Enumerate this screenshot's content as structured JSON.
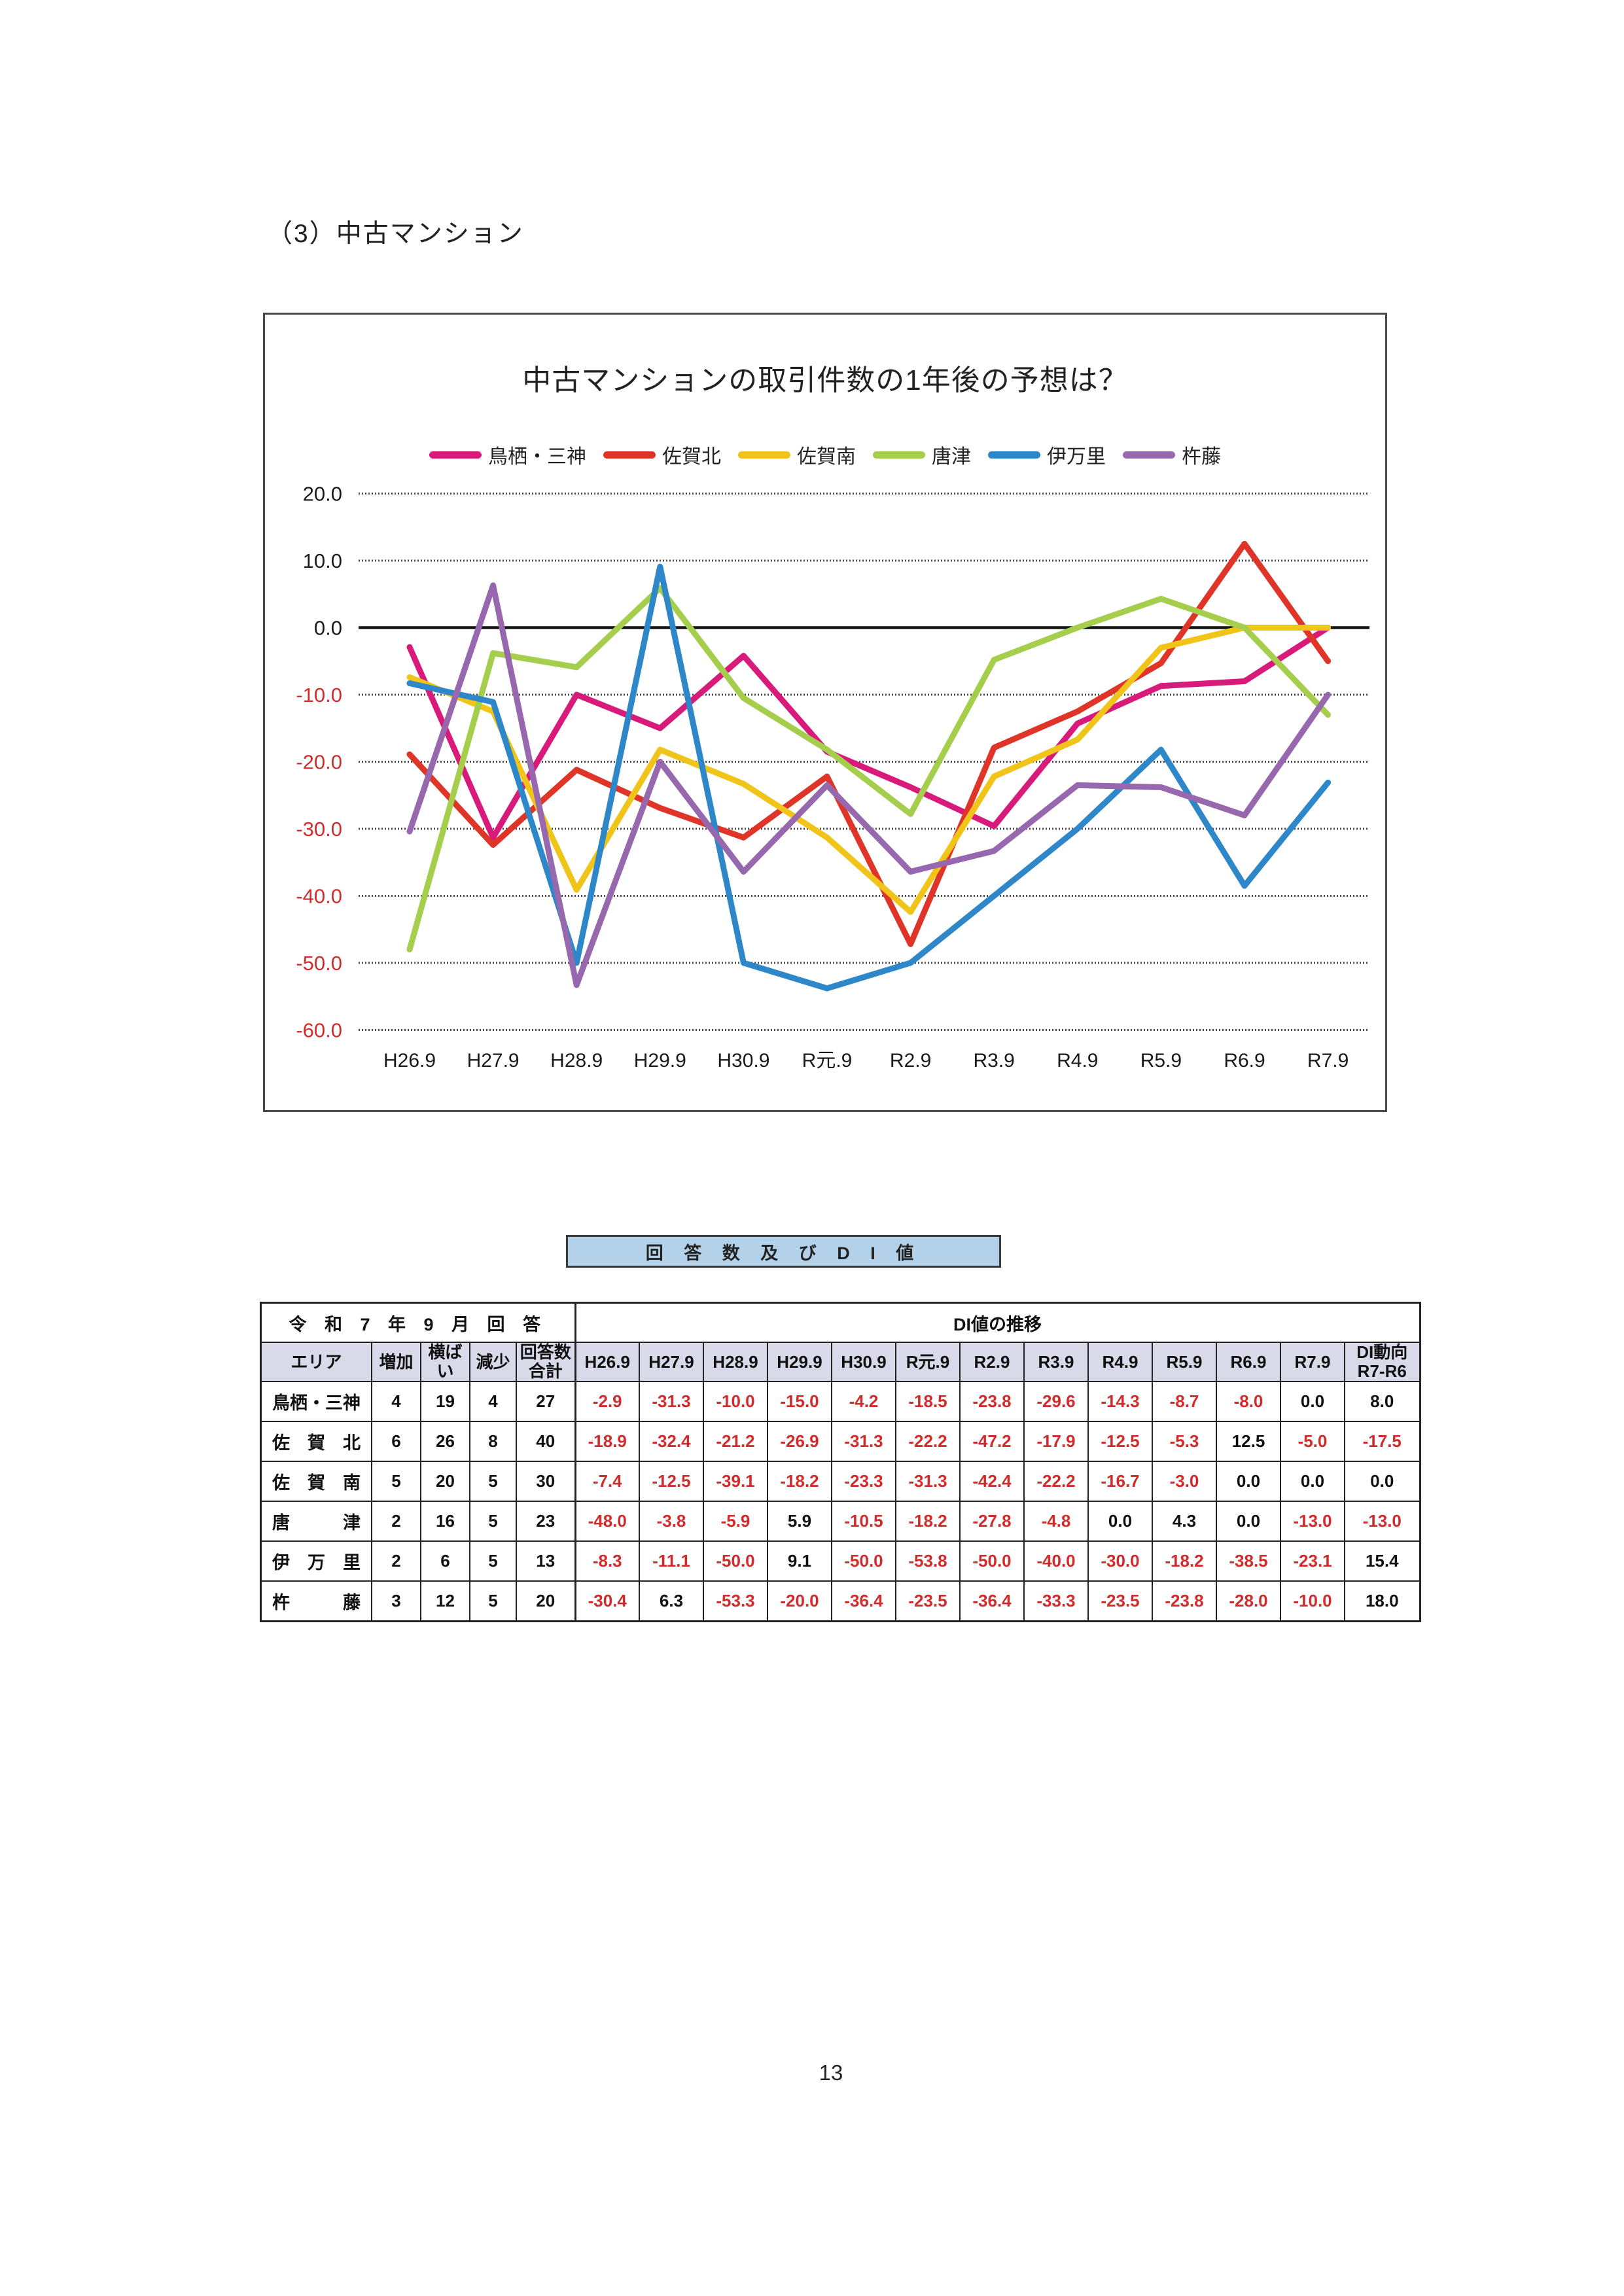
{
  "page": {
    "heading": "（3）中古マンション",
    "page_number": "13"
  },
  "chart_data": {
    "type": "line",
    "title": "中古マンションの取引件数の1年後の予想は？",
    "categories": [
      "H26.9",
      "H27.9",
      "H28.9",
      "H29.9",
      "H30.9",
      "R元.9",
      "R2.9",
      "R3.9",
      "R4.9",
      "R5.9",
      "R6.9",
      "R7.9"
    ],
    "series": [
      {
        "name": "鳥栖・三神",
        "color": "#d81b7b",
        "values": [
          -2.9,
          -31.3,
          -10.0,
          -15.0,
          -4.2,
          -18.5,
          -23.8,
          -29.6,
          -14.3,
          -8.7,
          -8.0,
          0.0
        ]
      },
      {
        "name": "佐賀北",
        "color": "#df3428",
        "values": [
          -18.9,
          -32.4,
          -21.2,
          -26.9,
          -31.3,
          -22.2,
          -47.2,
          -17.9,
          -12.5,
          -5.3,
          12.5,
          -5.0
        ]
      },
      {
        "name": "佐賀南",
        "color": "#f0c419",
        "values": [
          -7.4,
          -12.5,
          -39.1,
          -18.2,
          -23.3,
          -31.3,
          -42.4,
          -22.2,
          -16.7,
          -3.0,
          0.0,
          0.0
        ]
      },
      {
        "name": "唐津",
        "color": "#a5ce4d",
        "values": [
          -48.0,
          -3.8,
          -5.9,
          5.9,
          -10.5,
          -18.2,
          -27.8,
          -4.8,
          0.0,
          4.3,
          0.0,
          -13.0
        ]
      },
      {
        "name": "伊万里",
        "color": "#2e87c8",
        "values": [
          -8.3,
          -11.1,
          -50.0,
          9.1,
          -50.0,
          -53.8,
          -50.0,
          -40.0,
          -30.0,
          -18.2,
          -38.5,
          -23.1
        ]
      },
      {
        "name": "杵藤",
        "color": "#9768ae",
        "values": [
          -30.4,
          6.3,
          -53.3,
          -20.0,
          -36.4,
          -23.5,
          -36.4,
          -33.3,
          -23.5,
          -23.8,
          -28.0,
          -10.0
        ]
      }
    ],
    "y_ticks": [
      20,
      10,
      0,
      -10,
      -20,
      -30,
      -40,
      -50,
      -60
    ],
    "ylim": [
      -60,
      20
    ],
    "xlabel": "",
    "ylabel": "",
    "grid": "horizontal",
    "legend_position": "top",
    "negative_tick_color": "#d22b2b"
  },
  "banner": {
    "label": "回 答 数 及 び D I 値"
  },
  "table": {
    "group_left": "令 和 7 年 9 月 回 答",
    "group_right": "DI値の推移",
    "columns": [
      "エリア",
      "増加",
      "横ばい",
      "減少"
    ],
    "total_header": {
      "line1": "回答数",
      "line2": "合計"
    },
    "di_columns": [
      "H26.9",
      "H27.9",
      "H28.9",
      "H29.9",
      "H30.9",
      "R元.9",
      "R2.9",
      "R3.9",
      "R4.9",
      "R5.9",
      "R6.9",
      "R7.9"
    ],
    "trend_header": {
      "line1": "DI動向",
      "line2": "R7-R6"
    },
    "rows": [
      {
        "area": "鳥栖・三神",
        "increase": 4,
        "flat": 19,
        "decrease": 4,
        "total": 27,
        "di": [
          -2.9,
          -31.3,
          -10.0,
          -15.0,
          -4.2,
          -18.5,
          -23.8,
          -29.6,
          -14.3,
          -8.7,
          -8.0,
          0.0
        ],
        "trend": 8.0
      },
      {
        "area": "佐賀北",
        "increase": 6,
        "flat": 26,
        "decrease": 8,
        "total": 40,
        "di": [
          -18.9,
          -32.4,
          -21.2,
          -26.9,
          -31.3,
          -22.2,
          -47.2,
          -17.9,
          -12.5,
          -5.3,
          12.5,
          -5.0
        ],
        "trend": -17.5
      },
      {
        "area": "佐賀南",
        "increase": 5,
        "flat": 20,
        "decrease": 5,
        "total": 30,
        "di": [
          -7.4,
          -12.5,
          -39.1,
          -18.2,
          -23.3,
          -31.3,
          -42.4,
          -22.2,
          -16.7,
          -3.0,
          0.0,
          0.0
        ],
        "trend": 0.0
      },
      {
        "area": "唐津",
        "increase": 2,
        "flat": 16,
        "decrease": 5,
        "total": 23,
        "di": [
          -48.0,
          -3.8,
          -5.9,
          5.9,
          -10.5,
          -18.2,
          -27.8,
          -4.8,
          0.0,
          4.3,
          0.0,
          -13.0
        ],
        "trend": -13.0
      },
      {
        "area": "伊万里",
        "increase": 2,
        "flat": 6,
        "decrease": 5,
        "total": 13,
        "di": [
          -8.3,
          -11.1,
          -50.0,
          9.1,
          -50.0,
          -53.8,
          -50.0,
          -40.0,
          -30.0,
          -18.2,
          -38.5,
          -23.1
        ],
        "trend": 15.4
      },
      {
        "area": "杵藤",
        "increase": 3,
        "flat": 12,
        "decrease": 5,
        "total": 20,
        "di": [
          -30.4,
          6.3,
          -53.3,
          -20.0,
          -36.4,
          -23.5,
          -36.4,
          -33.3,
          -23.5,
          -23.8,
          -28.0,
          -10.0
        ],
        "trend": 18.0
      }
    ]
  }
}
